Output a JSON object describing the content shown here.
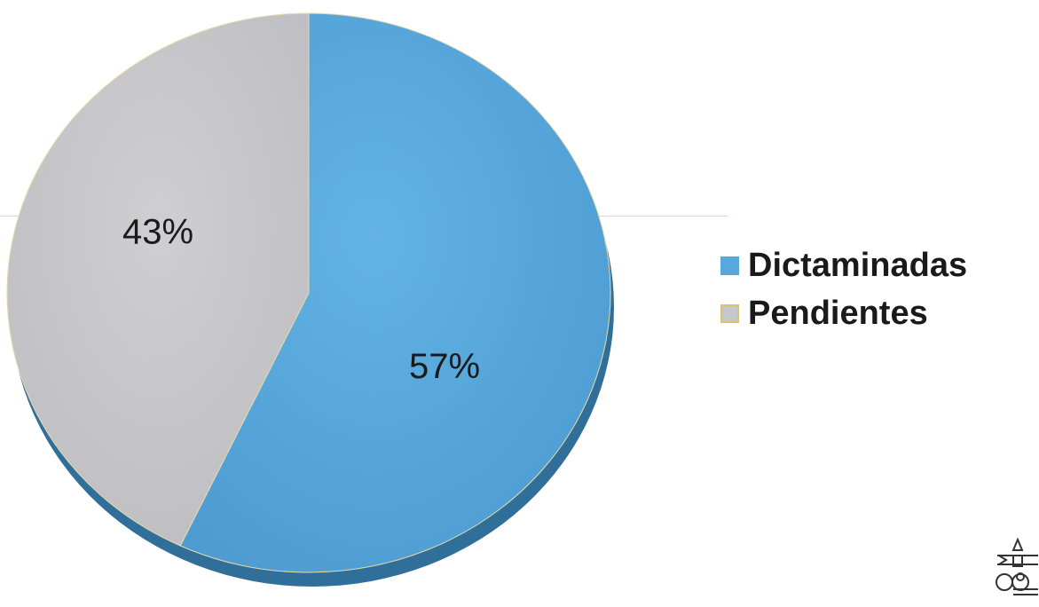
{
  "colors": {
    "dictaminadas": "#58a8dd",
    "pendientes": "#c7c7ca",
    "shadow": "#2f6f99",
    "text": "#1a1a1a"
  },
  "chart_data": {
    "type": "pie",
    "title": "",
    "slices": [
      {
        "label": "Dictaminadas",
        "value": 57,
        "display": "57%",
        "color": "#58a8dd"
      },
      {
        "label": "Pendientes",
        "value": 43,
        "display": "43%",
        "color": "#c7c7ca"
      }
    ],
    "legend_position": "right"
  },
  "legend": {
    "items": [
      {
        "label": "Dictaminadas",
        "color": "#58a8dd"
      },
      {
        "label": "Pendientes",
        "color": "#c7c7ca"
      }
    ]
  },
  "decorations": {
    "stamp_icon": "seal-stamp-icon"
  }
}
